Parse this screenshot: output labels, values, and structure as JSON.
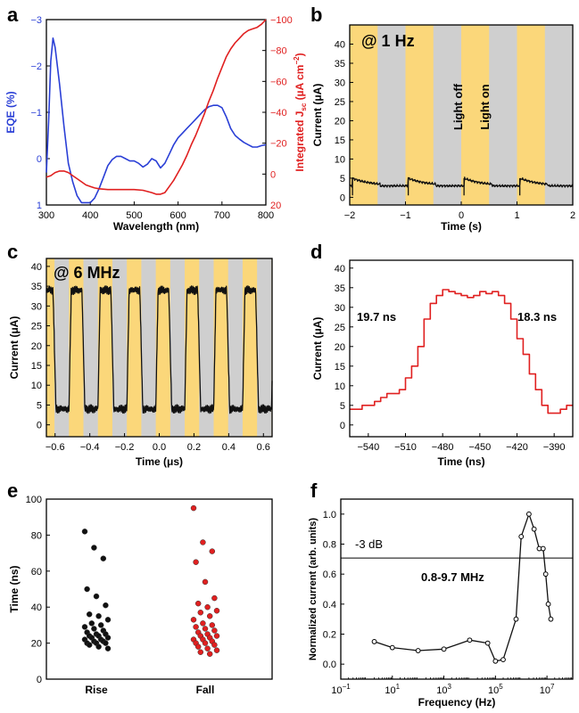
{
  "figure": {
    "panel_labels": [
      "a",
      "b",
      "c",
      "d",
      "e",
      "f"
    ]
  },
  "colors": {
    "blue": "#2a3fd6",
    "red": "#e02020",
    "black": "#111111",
    "light_band": "#fbd77a",
    "dark_band": "#cfcfcf"
  },
  "chart_data": [
    {
      "panel": "a",
      "type": "line",
      "xlabel": "Wavelength (nm)",
      "ylabel": "EQE (%)",
      "y2label": "Integrated J",
      "y2label_sub": "sc",
      "y2label_unit": " (µA cm",
      "y2label_sup": "−2",
      "y2label_end": ")",
      "xlim": [
        300,
        800
      ],
      "ylim": [
        -3,
        1
      ],
      "y_inverted": true,
      "y2lim": [
        -100,
        20
      ],
      "y2_inverted": true,
      "xticks": [
        300,
        400,
        500,
        600,
        700,
        800
      ],
      "yticks": [
        -3,
        -2,
        -1,
        0,
        1
      ],
      "ytick_labels": [
        "−3",
        "−2",
        "−1",
        "0",
        "1"
      ],
      "y2ticks": [
        -100,
        -80,
        -60,
        -40,
        -20,
        0,
        20
      ],
      "y2tick_labels": [
        "−100",
        "−80",
        "−60",
        "−40",
        "−20",
        "0",
        "20"
      ],
      "series": [
        {
          "axis": "left",
          "x": [
            300,
            305,
            310,
            315,
            320,
            330,
            340,
            350,
            360,
            370,
            380,
            390,
            400,
            410,
            420,
            430,
            440,
            450,
            460,
            470,
            480,
            490,
            500,
            510,
            520,
            530,
            540,
            550,
            560,
            570,
            580,
            590,
            600,
            610,
            620,
            630,
            640,
            650,
            660,
            670,
            680,
            690,
            700,
            710,
            720,
            730,
            740,
            750,
            760,
            770,
            780,
            790,
            800
          ],
          "y": [
            0.3,
            -0.8,
            -2.1,
            -2.6,
            -2.4,
            -1.6,
            -0.7,
            0.1,
            0.5,
            0.8,
            0.95,
            0.95,
            0.95,
            0.85,
            0.65,
            0.4,
            0.15,
            0.02,
            -0.05,
            -0.05,
            0.0,
            0.05,
            0.05,
            0.1,
            0.18,
            0.12,
            0.0,
            0.05,
            0.2,
            0.1,
            -0.1,
            -0.3,
            -0.45,
            -0.55,
            -0.65,
            -0.75,
            -0.85,
            -0.95,
            -1.05,
            -1.12,
            -1.15,
            -1.15,
            -1.1,
            -0.9,
            -0.65,
            -0.5,
            -0.42,
            -0.35,
            -0.3,
            -0.25,
            -0.25,
            -0.28,
            -0.3
          ]
        },
        {
          "axis": "right",
          "x": [
            300,
            310,
            320,
            330,
            340,
            350,
            360,
            370,
            380,
            390,
            400,
            410,
            420,
            440,
            460,
            480,
            500,
            520,
            540,
            550,
            560,
            570,
            580,
            590,
            600,
            610,
            620,
            630,
            640,
            650,
            660,
            670,
            680,
            690,
            700,
            710,
            720,
            730,
            740,
            750,
            760,
            770,
            780,
            790,
            800
          ],
          "y": [
            2,
            1,
            -1,
            -2,
            -2,
            -1,
            1,
            3,
            5,
            7,
            8,
            9,
            9.5,
            10,
            10,
            10,
            10,
            10.5,
            12,
            13,
            13,
            12,
            8,
            4,
            -1,
            -6,
            -12,
            -19,
            -25,
            -32,
            -39,
            -47,
            -54,
            -62,
            -69,
            -76,
            -81,
            -85,
            -88,
            -91,
            -93,
            -94,
            -95,
            -97,
            -100
          ]
        }
      ]
    },
    {
      "panel": "b",
      "type": "line",
      "xlabel": "Time (s)",
      "ylabel": "Current (μA)",
      "xlim": [
        -2,
        2
      ],
      "ylim": [
        -2,
        45
      ],
      "xticks": [
        -2,
        -1,
        0,
        1,
        2
      ],
      "xtick_labels": [
        "−2",
        "−1",
        "0",
        "1",
        "2"
      ],
      "yticks": [
        0,
        5,
        10,
        15,
        20,
        25,
        30,
        35,
        40
      ],
      "light_on_intervals": [
        [
          -2.0,
          -1.5
        ],
        [
          -1.0,
          -0.5
        ],
        [
          0.0,
          0.5
        ],
        [
          1.0,
          1.5
        ]
      ],
      "annotations": [
        "@ 1 Hz",
        "Light off",
        "Light on"
      ],
      "pulse_starts": [
        -1.95,
        -0.95,
        0.05,
        1.05
      ],
      "baseline_uA": 3.0,
      "peak_uA": 5.0
    },
    {
      "panel": "c",
      "type": "line",
      "xlabel": "Time (μs)",
      "ylabel": "Current (μA)",
      "xlim": [
        -0.65,
        0.65
      ],
      "ylim": [
        -3,
        42
      ],
      "xticks": [
        -0.6,
        -0.4,
        -0.2,
        0.0,
        0.2,
        0.4,
        0.6
      ],
      "xtick_labels": [
        "−0.6",
        "−0.4",
        "−0.2",
        "0.0",
        "0.2",
        "0.4",
        "0.6"
      ],
      "yticks": [
        0,
        5,
        10,
        15,
        20,
        25,
        30,
        35,
        40
      ],
      "annotation": "@ 6 MHz",
      "period_us": 0.1667,
      "high_uA": 34,
      "low_uA": 4
    },
    {
      "panel": "d",
      "type": "line",
      "xlabel": "Time (ns)",
      "ylabel": "Current (μA)",
      "xlim": [
        -555,
        -375
      ],
      "ylim": [
        -3,
        42
      ],
      "xticks": [
        -540,
        -510,
        -480,
        -450,
        -420,
        -390
      ],
      "xtick_labels": [
        "−540",
        "−510",
        "−480",
        "−450",
        "−420",
        "−390"
      ],
      "yticks": [
        0,
        5,
        10,
        15,
        20,
        25,
        30,
        35,
        40
      ],
      "annotations": [
        "19.7 ns",
        "18.3 ns"
      ],
      "x": [
        -555,
        -545,
        -540,
        -535,
        -530,
        -525,
        -520,
        -515,
        -510,
        -505,
        -500,
        -495,
        -490,
        -485,
        -480,
        -475,
        -470,
        -465,
        -460,
        -455,
        -450,
        -445,
        -440,
        -435,
        -430,
        -425,
        -420,
        -415,
        -410,
        -405,
        -400,
        -395,
        -390,
        -385,
        -380,
        -375
      ],
      "y": [
        4,
        5,
        5,
        6,
        7,
        8,
        8,
        9,
        12,
        15,
        20,
        27,
        31,
        33,
        34.5,
        34,
        33.5,
        33,
        32.5,
        33,
        34,
        33.5,
        34,
        33,
        31,
        27,
        22,
        18,
        13,
        9,
        5,
        3,
        3,
        4,
        5,
        5
      ]
    },
    {
      "panel": "e",
      "type": "scatter",
      "ylabel": "Time (ns)",
      "categories": [
        "Rise",
        "Fall"
      ],
      "ylim": [
        0,
        100
      ],
      "yticks": [
        0,
        20,
        40,
        60,
        80,
        100
      ],
      "series": [
        {
          "name": "Rise",
          "color": "black",
          "values": [
            82,
            73,
            67,
            50,
            46,
            41,
            36,
            35,
            33,
            31,
            30,
            29,
            28,
            27,
            26,
            25,
            25,
            24,
            24,
            23,
            23,
            22,
            22,
            21,
            21,
            20,
            20,
            20,
            19,
            18,
            17
          ]
        },
        {
          "name": "Fall",
          "color": "red",
          "values": [
            95,
            76,
            71,
            65,
            54,
            45,
            42,
            40,
            38,
            37,
            35,
            33,
            31,
            30,
            29,
            28,
            27,
            26,
            25,
            24,
            24,
            23,
            22,
            22,
            21,
            20,
            20,
            19,
            18,
            17,
            16,
            15,
            14
          ]
        }
      ]
    },
    {
      "panel": "f",
      "type": "line",
      "xlabel": "Frequency (Hz)",
      "ylabel": "Normalized current (arb. units)",
      "x_log": true,
      "xlim_log10": [
        -1,
        8
      ],
      "ylim": [
        -0.1,
        1.1
      ],
      "yticks": [
        0.0,
        0.2,
        0.4,
        0.6,
        0.8,
        1.0
      ],
      "ytick_labels": [
        "0.0",
        "0.2",
        "0.4",
        "0.6",
        "0.8",
        "1.0"
      ],
      "xtick_exponents": [
        -1,
        1,
        3,
        5,
        7
      ],
      "xtick_base": "10",
      "hline": 0.707,
      "annotations": [
        "-3 dB",
        "0.8-9.7 MHz"
      ],
      "x_log10": [
        0.3,
        1.0,
        2.0,
        3.0,
        4.0,
        4.7,
        5.0,
        5.3,
        5.8,
        6.0,
        6.3,
        6.5,
        6.7,
        6.85,
        6.95,
        7.05,
        7.15
      ],
      "y": [
        0.15,
        0.11,
        0.09,
        0.1,
        0.16,
        0.14,
        0.02,
        0.03,
        0.3,
        0.85,
        1.0,
        0.9,
        0.77,
        0.77,
        0.6,
        0.4,
        0.3
      ]
    }
  ]
}
